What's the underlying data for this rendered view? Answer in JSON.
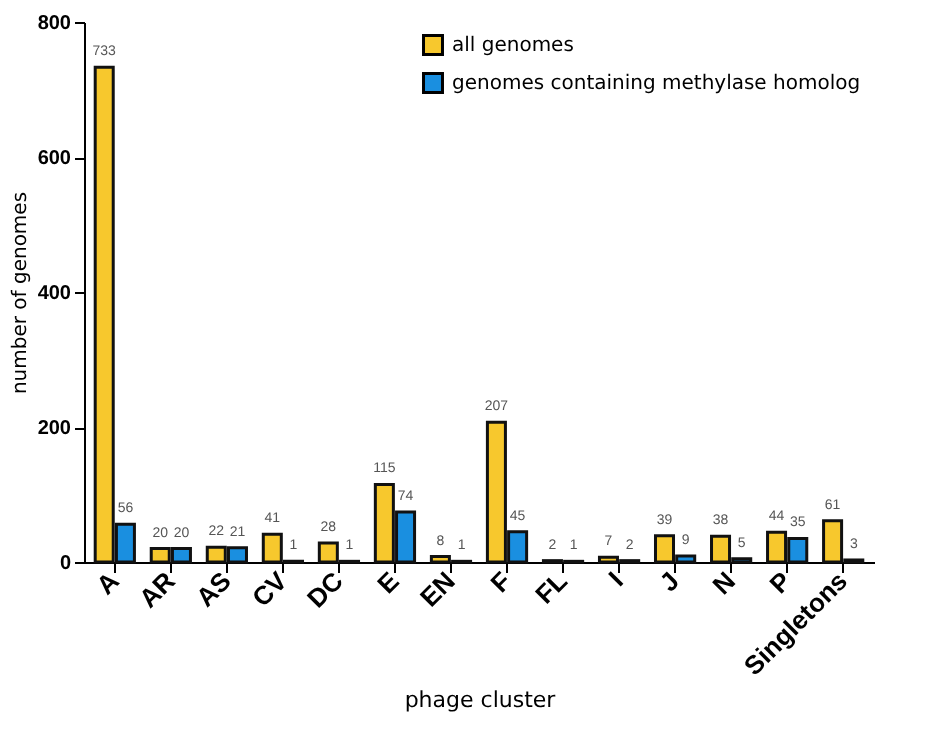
{
  "chart_data": {
    "type": "bar",
    "xlabel": "phage cluster",
    "ylabel": "number of genomes",
    "categories": [
      "A",
      "AR",
      "AS",
      "CV",
      "DC",
      "E",
      "EN",
      "F",
      "FL",
      "I",
      "J",
      "N",
      "P",
      "Singletons"
    ],
    "series": [
      {
        "name": "all genomes",
        "color": "#f7c82d",
        "values": [
          733,
          20,
          22,
          41,
          28,
          115,
          8,
          207,
          2,
          7,
          39,
          38,
          44,
          61
        ]
      },
      {
        "name": "genomes containing methylase homolog",
        "color": "#1a8fe0",
        "values": [
          56,
          20,
          21,
          1,
          1,
          74,
          1,
          45,
          1,
          2,
          9,
          5,
          35,
          3
        ]
      }
    ],
    "ylim": [
      0,
      800
    ],
    "yticks": [
      0,
      200,
      400,
      600,
      800
    ],
    "grid": false,
    "legend": "top right",
    "data_labels": true
  }
}
